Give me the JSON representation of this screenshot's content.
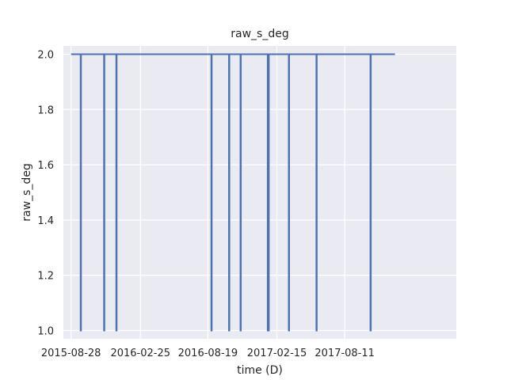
{
  "chart_data": {
    "type": "line",
    "title": "raw_s_deg",
    "xlabel": "time (D)",
    "ylabel": "raw_s_deg",
    "x_type": "date",
    "xlim": [
      "2015-08-08",
      "2018-05-29"
    ],
    "ylim": [
      0.97,
      2.03
    ],
    "x_ticks": [
      "2015-08-28",
      "2016-02-25",
      "2016-08-19",
      "2017-02-15",
      "2017-08-11"
    ],
    "y_ticks": [
      1.0,
      1.2,
      1.4,
      1.6,
      1.8,
      2.0
    ],
    "y_tick_labels": [
      "1.0",
      "1.2",
      "1.4",
      "1.6",
      "1.8",
      "2.0"
    ],
    "grid": true,
    "series": [
      {
        "color": "#4c72b0",
        "x": [
          "2015-08-28",
          "2015-09-22",
          "2015-09-22",
          "2015-09-23",
          "2015-09-23",
          "2015-11-22",
          "2015-11-22",
          "2015-11-23",
          "2015-11-23",
          "2015-12-24",
          "2015-12-24",
          "2015-12-25",
          "2015-12-25",
          "2016-08-28",
          "2016-08-28",
          "2016-08-29",
          "2016-08-29",
          "2016-10-13",
          "2016-10-13",
          "2016-10-14",
          "2016-10-14",
          "2016-11-12",
          "2016-11-12",
          "2016-11-13",
          "2016-11-13",
          "2017-01-22",
          "2017-01-22",
          "2017-01-25",
          "2017-01-25",
          "2017-03-18",
          "2017-03-18",
          "2017-03-19",
          "2017-03-19",
          "2017-05-29",
          "2017-05-29",
          "2017-05-30",
          "2017-05-30",
          "2017-10-17",
          "2017-10-17",
          "2017-10-18",
          "2017-10-18",
          "2017-12-20"
        ],
        "y": [
          2,
          2,
          1,
          1,
          2,
          2,
          1,
          1,
          2,
          2,
          1,
          1,
          2,
          2,
          1,
          1,
          2,
          2,
          1,
          1,
          2,
          2,
          1,
          1,
          2,
          2,
          1,
          1,
          2,
          2,
          1,
          1,
          2,
          2,
          1,
          1,
          2,
          2,
          1,
          1,
          2,
          2
        ]
      }
    ]
  }
}
